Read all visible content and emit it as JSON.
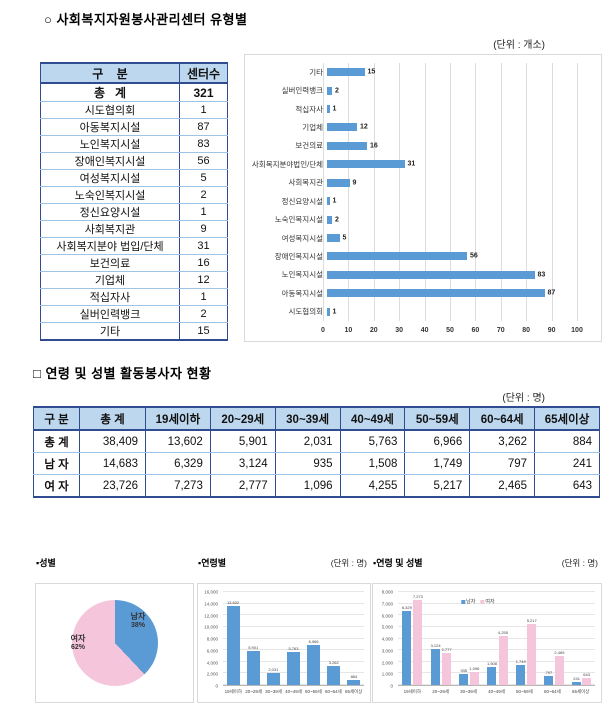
{
  "colors": {
    "bar_blue": "#5B9BD5",
    "pink": "#F5C5DC",
    "header_bg": "#BDD7EE",
    "border_navy": "#2E4C8F",
    "row_line": "#9DC3E6",
    "panel_border": "#D9D9D9"
  },
  "section1": {
    "title": "○ 사회복지자원봉사관리센터 유형별",
    "unit": "(단위 : 개소)"
  },
  "section2": {
    "title": "□ 연령 및 성별 활동봉사자 현황",
    "unit": "(단위 : 명)"
  },
  "center_table": {
    "headers": [
      "구    분",
      "센터수"
    ],
    "rows": [
      {
        "label": "총   계",
        "value": "321",
        "bold": true
      },
      {
        "label": "시도협의회",
        "value": "1"
      },
      {
        "label": "아동복지시설",
        "value": "87"
      },
      {
        "label": "노인복지시설",
        "value": "83"
      },
      {
        "label": "장애인복지시설",
        "value": "56"
      },
      {
        "label": "여성복지시설",
        "value": "5"
      },
      {
        "label": "노숙인복지시설",
        "value": "2"
      },
      {
        "label": "정신요양시설",
        "value": "1"
      },
      {
        "label": "사회복지관",
        "value": "9"
      },
      {
        "label": "사회복지분야 법입/단체",
        "value": "31"
      },
      {
        "label": "보건의료",
        "value": "16"
      },
      {
        "label": "기업체",
        "value": "12"
      },
      {
        "label": "적십자사",
        "value": "1"
      },
      {
        "label": "실버인력뱅크",
        "value": "2"
      },
      {
        "label": "기타",
        "value": "15"
      }
    ]
  },
  "age_table": {
    "headers": [
      "구 분",
      "총 계",
      "19세이하",
      "20~29세",
      "30~39세",
      "40~49세",
      "50~59세",
      "60~64세",
      "65세이상"
    ],
    "rows": [
      {
        "label": "총 계",
        "values": [
          "38,409",
          "13,602",
          "5,901",
          "2,031",
          "5,763",
          "6,966",
          "3,262",
          "884"
        ]
      },
      {
        "label": "남 자",
        "values": [
          "14,683",
          "6,329",
          "3,124",
          "935",
          "1,508",
          "1,749",
          "797",
          "241"
        ]
      },
      {
        "label": "여 자",
        "values": [
          "23,726",
          "7,273",
          "2,777",
          "1,096",
          "4,255",
          "5,217",
          "2,465",
          "643"
        ]
      }
    ]
  },
  "bottom": {
    "pie_title": "▪성별",
    "bar_title": "▪연령별",
    "bar_unit": "(단위 : 명)",
    "grouped_title": "▪연령 및 성별",
    "grouped_unit": "(단위 : 명)"
  },
  "chart_data": [
    {
      "type": "bar",
      "orientation": "horizontal",
      "title": "사회복지자원봉사관리센터 유형별",
      "unit": "개소",
      "categories_top_to_bottom": [
        "기타",
        "실버인력뱅크",
        "적십자사",
        "기업체",
        "보건의료",
        "사회복지분야법인/단체",
        "사회복지관",
        "정신요양시설",
        "노숙인복지시설",
        "여성복지시설",
        "장애인복지시설",
        "노인복지시설",
        "아동복지시설",
        "시도협의회"
      ],
      "values": [
        15,
        2,
        1,
        12,
        16,
        31,
        9,
        1,
        2,
        5,
        56,
        83,
        87,
        1
      ],
      "xlim": [
        0,
        100
      ],
      "xticks": [
        0,
        10,
        20,
        30,
        40,
        50,
        60,
        70,
        80,
        90,
        100
      ],
      "grid": true,
      "bar_color": "#5B9BD5"
    },
    {
      "type": "pie",
      "title": "성별",
      "slices": [
        {
          "label": "남자",
          "pct": 38,
          "color": "#5B9BD5"
        },
        {
          "label": "여자",
          "pct": 62,
          "color": "#F5C5DC"
        }
      ]
    },
    {
      "type": "bar",
      "title": "연령별",
      "unit": "명",
      "categories": [
        "19세이하",
        "20~29세",
        "30~39세",
        "40~49세",
        "50~59세",
        "60~64세",
        "65세이상"
      ],
      "values": [
        13602,
        5901,
        2031,
        5763,
        6966,
        3262,
        884
      ],
      "labels": [
        "13,602",
        "5,901",
        "2,031",
        "5,763",
        "6,966",
        "3,262",
        "884"
      ],
      "ylim": [
        0,
        16000
      ],
      "ytick_step": 2000,
      "grid": true,
      "bar_color": "#5B9BD5"
    },
    {
      "type": "bar",
      "title": "연령 및 성별",
      "unit": "명",
      "categories": [
        "19세이하",
        "20~29세",
        "30~39세",
        "40~49세",
        "50~59세",
        "60~64세",
        "65세이상"
      ],
      "series": [
        {
          "name": "남자",
          "color": "#5B9BD5",
          "values": [
            6329,
            3124,
            935,
            1508,
            1749,
            797,
            241
          ],
          "labels": [
            "6,329",
            "3,124",
            "935",
            "1,508",
            "1,749",
            "797",
            "241"
          ]
        },
        {
          "name": "여자",
          "color": "#F5C5DC",
          "values": [
            7273,
            2777,
            1096,
            4255,
            5217,
            2465,
            643
          ],
          "labels": [
            "7,273",
            "2,777",
            "1,096",
            "4,255",
            "5,217",
            "2,465",
            "643"
          ]
        }
      ],
      "ylim": [
        0,
        8000
      ],
      "ytick_step": 1000,
      "grid": true,
      "legend_position": "top"
    }
  ]
}
